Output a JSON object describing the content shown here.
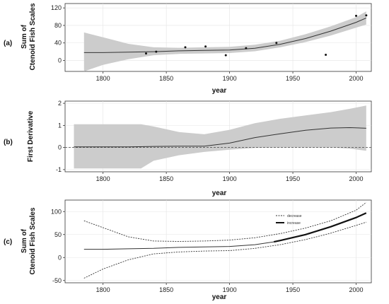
{
  "figure": {
    "panels": [
      {
        "tag": "(a)",
        "ylabel_line1": "Sum of",
        "ylabel_line2": "Ctenoid Fish Scales",
        "xlabel": "year",
        "xticks": [
          1800,
          1850,
          1900,
          1950,
          2000
        ],
        "yticks": [
          0,
          40,
          80,
          120
        ]
      },
      {
        "tag": "(b)",
        "ylabel_line1": "First Derivative",
        "xlabel": "year",
        "xticks": [
          1800,
          1850,
          1900,
          1950,
          2000
        ],
        "yticks": [
          -1,
          0,
          1,
          2
        ]
      },
      {
        "tag": "(c)",
        "ylabel_line1": "Sum of",
        "ylabel_line2": "Ctenoid Fish Scales",
        "xlabel": "year",
        "xticks": [
          1800,
          1850,
          1900,
          1950,
          2000
        ],
        "yticks": [
          -50,
          0,
          50,
          100
        ],
        "legend": [
          "decrease",
          "increase"
        ]
      }
    ]
  },
  "chart_data": [
    {
      "type": "line",
      "panel": "(a)",
      "xlim": [
        1770,
        2012
      ],
      "ylim": [
        -25,
        130
      ],
      "grid": true,
      "series": [
        {
          "role": "fit",
          "x": [
            1785,
            1800,
            1820,
            1840,
            1860,
            1880,
            1900,
            1920,
            1940,
            1960,
            1980,
            2000,
            2008
          ],
          "y": [
            18,
            18,
            19,
            20,
            22,
            23,
            24,
            28,
            37,
            50,
            67,
            87,
            97
          ]
        },
        {
          "role": "confidence_band",
          "x": [
            1785,
            1800,
            1820,
            1840,
            1860,
            1880,
            1900,
            1920,
            1940,
            1960,
            1980,
            2000,
            2008
          ],
          "lower": [
            -25,
            -10,
            3,
            12,
            15,
            16,
            17,
            21,
            30,
            42,
            57,
            75,
            82
          ],
          "upper": [
            64,
            53,
            38,
            30,
            29,
            30,
            31,
            36,
            45,
            60,
            78,
            99,
            112
          ]
        },
        {
          "role": "observed",
          "x": [
            1834,
            1842,
            1865,
            1881,
            1897,
            1913,
            1937,
            1976,
            2000,
            2008
          ],
          "y": [
            16,
            20,
            30,
            32,
            12,
            28,
            40,
            13,
            102,
            103
          ]
        }
      ]
    },
    {
      "type": "line",
      "panel": "(b)",
      "xlim": [
        1770,
        2012
      ],
      "ylim": [
        -1.1,
        2.1
      ],
      "grid": true,
      "reference_line_y": 0,
      "series": [
        {
          "role": "derivative",
          "x": [
            1777,
            1800,
            1820,
            1840,
            1860,
            1880,
            1900,
            1920,
            1940,
            1960,
            1980,
            1995,
            2008
          ],
          "y": [
            0.03,
            0.03,
            0.03,
            0.05,
            0.06,
            0.06,
            0.2,
            0.45,
            0.62,
            0.78,
            0.88,
            0.9,
            0.87
          ]
        },
        {
          "role": "confidence_band",
          "x": [
            1777,
            1800,
            1820,
            1830,
            1840,
            1860,
            1880,
            1900,
            1920,
            1940,
            1960,
            1980,
            1995,
            2008
          ],
          "lower": [
            -0.95,
            -0.95,
            -0.95,
            -0.95,
            -0.6,
            -0.35,
            -0.2,
            -0.1,
            -0.02,
            0.0,
            0.0,
            0.0,
            -0.05,
            -0.15
          ],
          "upper": [
            1.05,
            1.05,
            1.05,
            1.05,
            0.95,
            0.7,
            0.6,
            0.8,
            1.1,
            1.3,
            1.45,
            1.6,
            1.75,
            1.9
          ]
        }
      ]
    },
    {
      "type": "line",
      "panel": "(c)",
      "xlim": [
        1770,
        2012
      ],
      "ylim": [
        -55,
        125
      ],
      "grid": true,
      "series": [
        {
          "name": "decrease",
          "role": "fit",
          "x": [
            1785,
            1800,
            1820,
            1840,
            1860,
            1880,
            1900,
            1920,
            1935
          ],
          "y": [
            18,
            18,
            19,
            20,
            22,
            23,
            24,
            28,
            34
          ]
        },
        {
          "name": "increase",
          "role": "fit",
          "x": [
            1935,
            1940,
            1960,
            1980,
            2000,
            2008
          ],
          "y": [
            34,
            37,
            50,
            67,
            87,
            97
          ]
        },
        {
          "role": "upper_bound",
          "x": [
            1785,
            1800,
            1820,
            1840,
            1860,
            1880,
            1900,
            1920,
            1940,
            1960,
            1980,
            2000,
            2008
          ],
          "y": [
            80,
            65,
            45,
            36,
            35,
            36,
            38,
            43,
            52,
            64,
            80,
            103,
            120
          ]
        },
        {
          "role": "lower_bound",
          "x": [
            1785,
            1800,
            1820,
            1840,
            1860,
            1880,
            1900,
            1920,
            1940,
            1960,
            1980,
            2000,
            2008
          ],
          "y": [
            -45,
            -25,
            -5,
            8,
            12,
            14,
            15,
            20,
            28,
            39,
            53,
            70,
            77
          ]
        }
      ]
    }
  ]
}
